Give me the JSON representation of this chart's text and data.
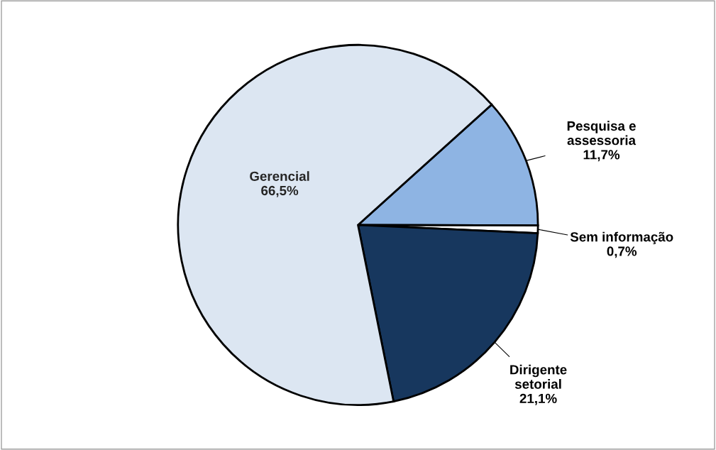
{
  "chart_data": {
    "type": "pie",
    "categories": [
      "Pesquisa e\nassessoria",
      "Sem informação",
      "Dirigente\nsetorial",
      "Gerencial"
    ],
    "values": [
      11.7,
      0.7,
      21.1,
      66.5
    ],
    "value_labels": [
      "11,7%",
      "0,7%",
      "21,1%",
      "66,5%"
    ],
    "colors": [
      "#8eb4e3",
      "#ffffff",
      "#17375e",
      "#dce6f2"
    ],
    "legend": false
  }
}
